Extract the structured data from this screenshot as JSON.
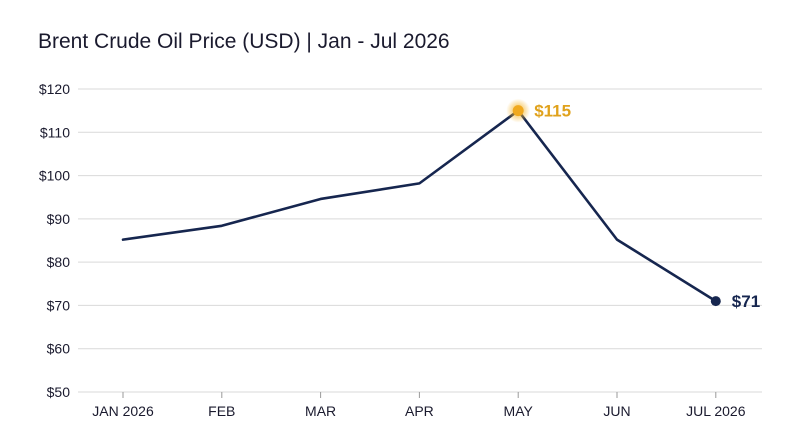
{
  "chart_data": {
    "type": "line",
    "title": "Brent Crude Oil Price (USD) | Jan - Jul 2026",
    "xlabel": "",
    "ylabel": "",
    "categories": [
      "JAN 2026",
      "FEB",
      "MAR",
      "APR",
      "MAY",
      "JUN",
      "JUL 2026"
    ],
    "values": [
      85.2,
      88.4,
      94.6,
      98.2,
      115,
      85.2,
      71
    ],
    "ylim": [
      50,
      120
    ],
    "yticks": [
      "$50",
      "$60",
      "$70",
      "$80",
      "$90",
      "$100",
      "$110",
      "$120"
    ],
    "ytick_values": [
      50,
      60,
      70,
      80,
      90,
      100,
      110,
      120
    ],
    "grid": true,
    "annotations": [
      {
        "index": 4,
        "text": "$115",
        "color": "#e0a21c"
      },
      {
        "index": 6,
        "text": "$71",
        "color": "#16264f"
      }
    ],
    "colors": {
      "line": "#16264f",
      "highlight": "#e0a21c",
      "grid": "#d9d9d9"
    }
  }
}
